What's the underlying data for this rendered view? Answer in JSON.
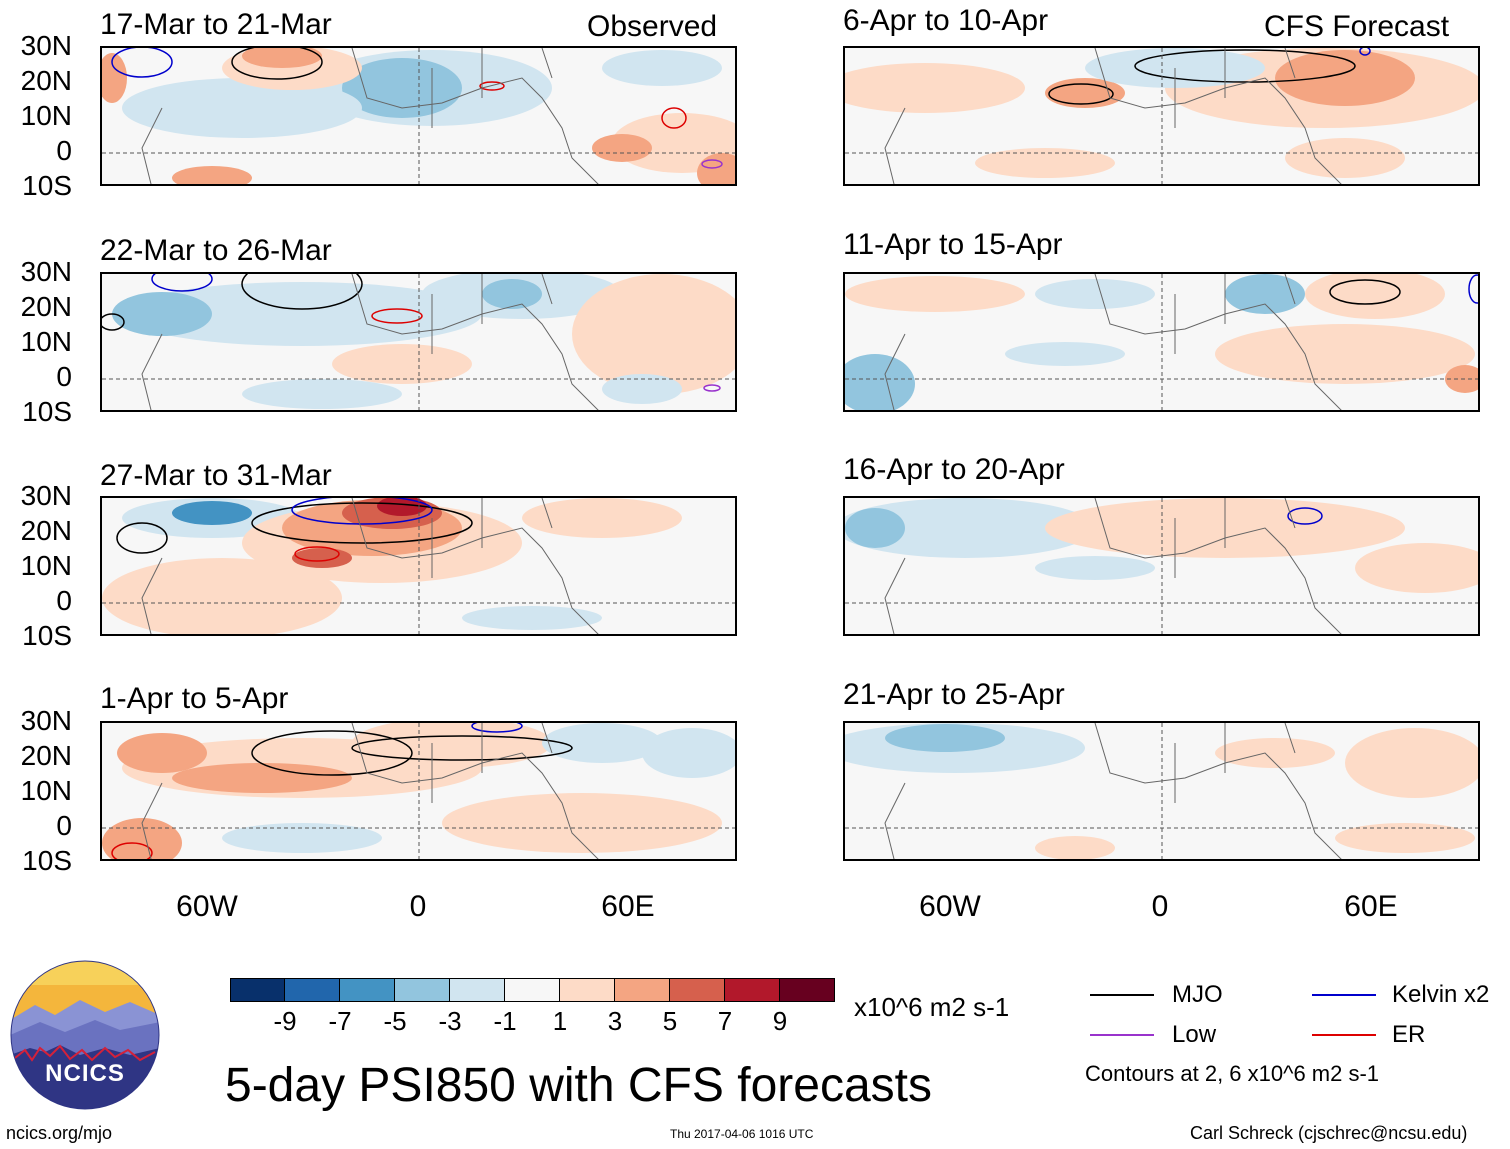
{
  "title": "5-day PSI850 with CFS forecasts",
  "column_labels": {
    "observed": "Observed",
    "forecast": "CFS Forecast"
  },
  "panels_left": [
    {
      "title": "17-Mar to 21-Mar"
    },
    {
      "title": "22-Mar to 26-Mar"
    },
    {
      "title": "27-Mar to 31-Mar"
    },
    {
      "title": "1-Apr to 5-Apr"
    }
  ],
  "panels_right": [
    {
      "title": "6-Apr to 10-Apr"
    },
    {
      "title": "11-Apr to 15-Apr"
    },
    {
      "title": "16-Apr to 20-Apr"
    },
    {
      "title": "21-Apr to 25-Apr"
    }
  ],
  "lat_labels": [
    "30N",
    "20N",
    "10N",
    "0",
    "10S"
  ],
  "lon_labels": [
    "60W",
    "0",
    "60E"
  ],
  "colorbar": {
    "levels": [
      "-9",
      "-7",
      "-5",
      "-3",
      "-1",
      "1",
      "3",
      "5",
      "7",
      "9"
    ],
    "colors": [
      "#08306b",
      "#2166ac",
      "#4393c3",
      "#92c5de",
      "#d1e5f0",
      "#f7f7f7",
      "#fddbc7",
      "#f4a582",
      "#d6604d",
      "#b2182b",
      "#67001f"
    ],
    "units": "x10^6 m2 s-1"
  },
  "legend": {
    "items": [
      {
        "label": "MJO",
        "color": "#000000"
      },
      {
        "label": "Kelvin x2",
        "color": "#0000cc"
      },
      {
        "label": "Low",
        "color": "#9933cc"
      },
      {
        "label": "ER",
        "color": "#dd0000"
      }
    ],
    "note": "Contours at 2, 6 x10^6 m2 s-1"
  },
  "logo": {
    "text": "NCICS"
  },
  "footer": {
    "url": "ncics.org/mjo",
    "timestamp": "Thu 2017-04-06 1016 UTC",
    "credit": "Carl Schreck (cjschrec@ncsu.edu)"
  }
}
